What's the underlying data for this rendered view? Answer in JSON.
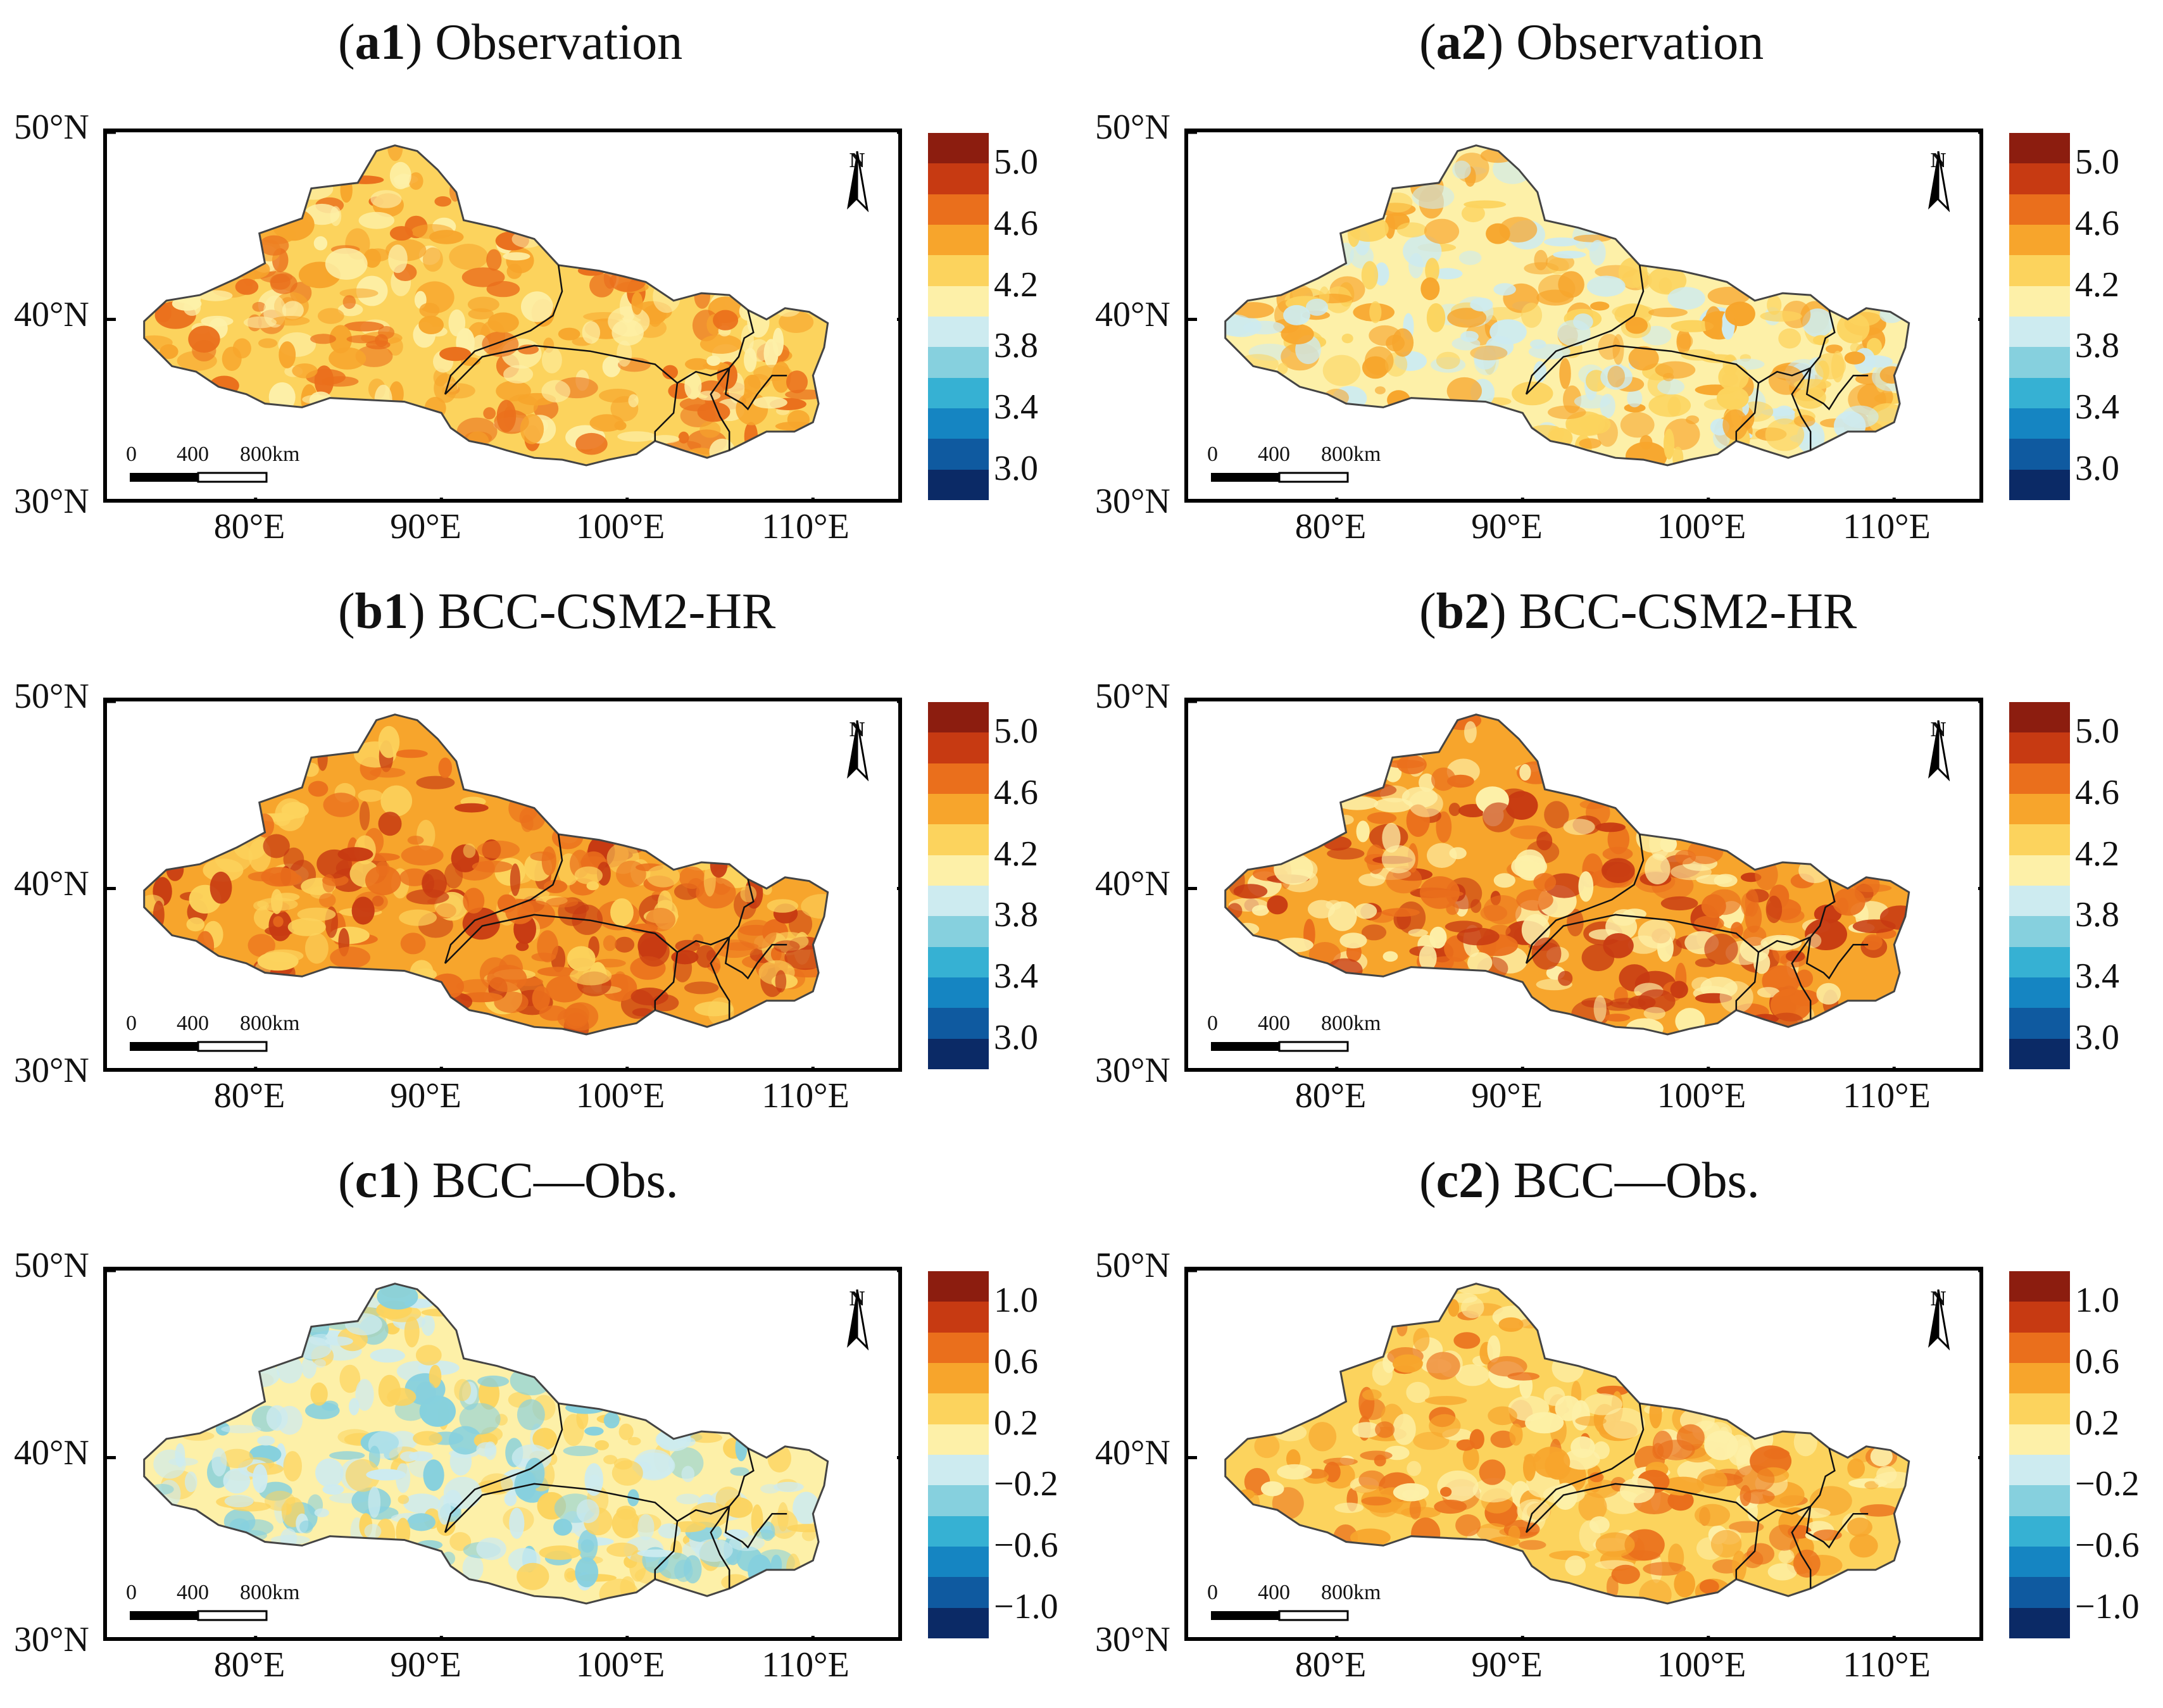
{
  "panels": [
    {
      "prefix": "(",
      "id": "a1",
      "suffix": ") ",
      "name": "Observation",
      "type": "abs"
    },
    {
      "prefix": "(",
      "id": "a2",
      "suffix": ") ",
      "name": "Observation",
      "type": "abs"
    },
    {
      "prefix": "(",
      "id": "b1",
      "suffix": ") ",
      "name": "BCC-CSM2-HR",
      "type": "abs"
    },
    {
      "prefix": "(",
      "id": "b2",
      "suffix": ") ",
      "name": "BCC-CSM2-HR",
      "type": "abs"
    },
    {
      "prefix": "(",
      "id": "c1",
      "suffix": ") ",
      "name": "BCC—Obs.",
      "type": "diff"
    },
    {
      "prefix": "(",
      "id": "c2",
      "suffix": ") ",
      "name": "BCC—Obs.",
      "type": "diff"
    }
  ],
  "axes": {
    "lat_labels": [
      "50°N",
      "40°N",
      "30°N"
    ],
    "lon_labels": [
      "80°E",
      "90°E",
      "100°E",
      "110°E"
    ]
  },
  "north_label": "N",
  "scale_bar": {
    "labels": [
      "0",
      "400",
      "800km"
    ]
  },
  "colorbars": {
    "abs": {
      "ticks": [
        "5.0",
        "4.6",
        "4.2",
        "3.8",
        "3.4",
        "3.0"
      ]
    },
    "diff": {
      "ticks": [
        "1.0",
        "0.6",
        "0.2",
        "−0.2",
        "−0.6",
        "−1.0"
      ]
    }
  },
  "colors": {
    "palette": [
      "#8c1d0f",
      "#c73a12",
      "#ea6f1c",
      "#f7a52c",
      "#fcd35d",
      "#fdf0a8",
      "#cdebf0",
      "#86d0de",
      "#36b1d3",
      "#1585c2",
      "#0f5aa0",
      "#0b2a66"
    ],
    "fills": {
      "a1": {
        "base": "#fcd35d",
        "patch": [
          "#f7a52c",
          "#ea6f1c",
          "#fdf0a8"
        ]
      },
      "a2": {
        "base": "#fdf0a8",
        "patch": [
          "#fcd35d",
          "#f7a52c",
          "#cdebf0"
        ]
      },
      "b1": {
        "base": "#f7a52c",
        "patch": [
          "#ea6f1c",
          "#c73a12",
          "#fcd35d"
        ]
      },
      "b2": {
        "base": "#f7a52c",
        "patch": [
          "#ea6f1c",
          "#c73a12",
          "#fdf0a8"
        ]
      },
      "c1": {
        "base": "#fdf0a8",
        "patch": [
          "#fcd35d",
          "#cdebf0",
          "#86d0de"
        ]
      },
      "c2": {
        "base": "#fcd35d",
        "patch": [
          "#f7a52c",
          "#ea6f1c",
          "#fdf0a8"
        ]
      }
    }
  }
}
